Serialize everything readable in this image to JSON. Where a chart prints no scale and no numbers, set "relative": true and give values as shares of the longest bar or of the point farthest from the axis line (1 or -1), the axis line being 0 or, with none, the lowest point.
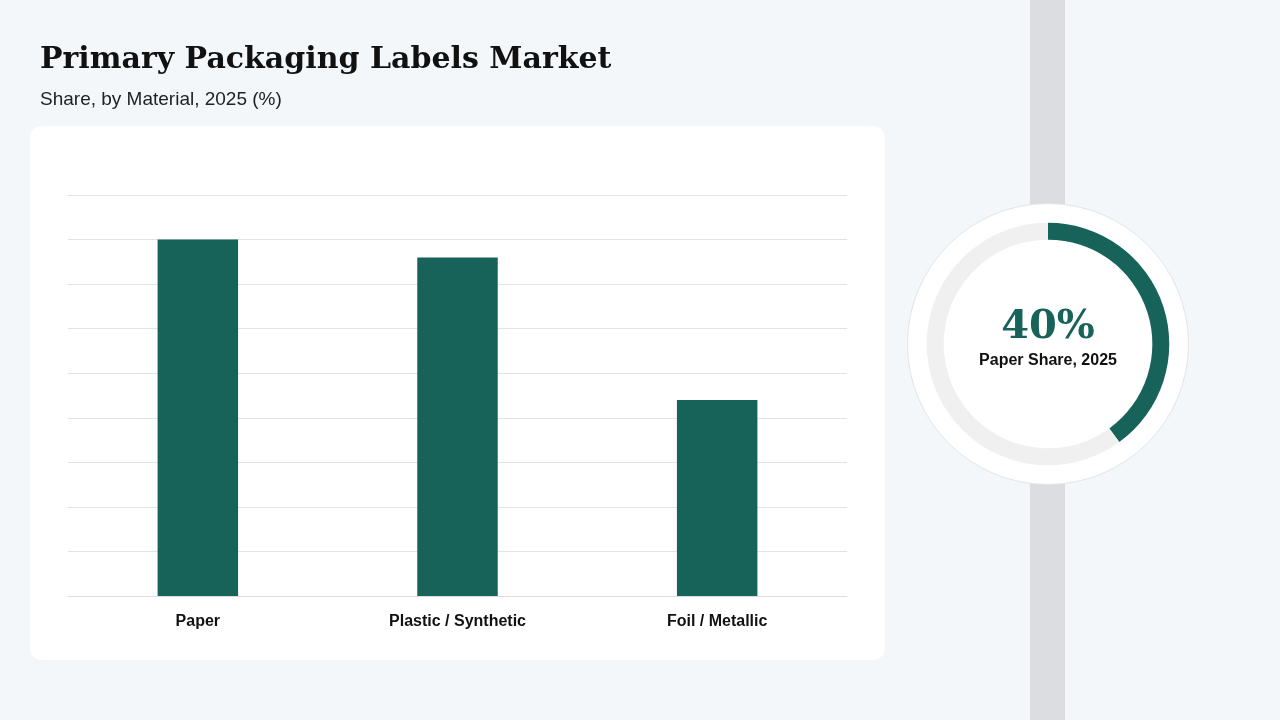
{
  "chart_data": [
    {
      "type": "bar",
      "title": "Primary Packaging Labels Market",
      "subtitle": "Share, by Material, 2025 (%)",
      "categories": [
        "Paper",
        "Plastic / Synthetic",
        "Foil / Metallic"
      ],
      "values": [
        1,
        0.95,
        0.55
      ],
      "color": "#17635a",
      "relative": true,
      "grid": true
    },
    {
      "type": "donut",
      "categories": [
        null,
        null
      ],
      "values": [
        40,
        60
      ],
      "colors": [
        "#17635a",
        "#f0f0f0"
      ],
      "annotations": [
        "40%",
        "Paper Share, 2025"
      ]
    }
  ]
}
